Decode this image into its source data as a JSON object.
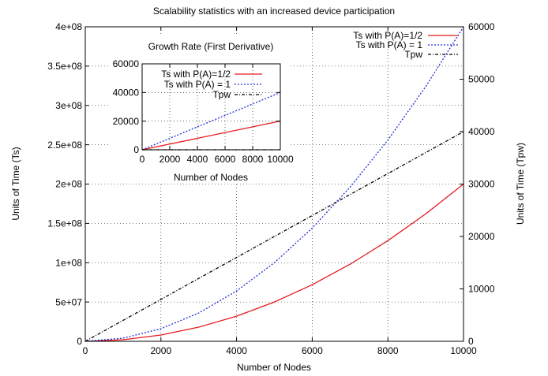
{
  "chart_data": [
    {
      "type": "line",
      "title": "Scalability statistics with an increased device participation",
      "xlabel": "Number of Nodes",
      "ylabel": "Units of Time (Ts)",
      "y2label": "Units of Time (Tpw)",
      "xlim": [
        0,
        10000
      ],
      "ylim": [
        0,
        400000000
      ],
      "y2lim": [
        0,
        60000
      ],
      "xticks": [
        "0",
        "2000",
        "4000",
        "6000",
        "8000",
        "10000"
      ],
      "yticks": [
        "0",
        "5e+07",
        "1e+08",
        "1.5e+08",
        "2e+08",
        "2.5e+08",
        "3e+08",
        "3.5e+08",
        "4e+08"
      ],
      "y2ticks": [
        "0",
        "10000",
        "20000",
        "30000",
        "40000",
        "50000",
        "60000"
      ],
      "grid": true,
      "legend_position": "top-right",
      "series": [
        {
          "name": "Ts with P(A)=1/2",
          "axis": "left",
          "color": "#e41a1c",
          "dash": "solid",
          "x": [
            0,
            1000,
            2000,
            3000,
            4000,
            5000,
            6000,
            7000,
            8000,
            9000,
            10000
          ],
          "y": [
            0,
            2000000,
            8000000,
            18000000,
            32000000,
            50000000,
            72000000,
            98000000,
            128000000,
            162000000,
            200000000
          ]
        },
        {
          "name": "Ts with P(A) = 1",
          "axis": "left",
          "color": "#1f2fd6",
          "dash": "dotted",
          "x": [
            0,
            1000,
            2000,
            3000,
            4000,
            5000,
            6000,
            7000,
            8000,
            9000,
            10000
          ],
          "y": [
            0,
            4000000,
            16000000,
            36000000,
            64000000,
            100000000,
            144000000,
            196000000,
            256000000,
            324000000,
            400000000
          ]
        },
        {
          "name": "Tpw",
          "axis": "right",
          "color": "#000000",
          "dash": "dashdot",
          "x": [
            0,
            10000
          ],
          "y": [
            0,
            40000
          ]
        }
      ]
    },
    {
      "type": "line",
      "title": "Growth Rate (First Derivative)",
      "xlabel": "Number of Nodes",
      "ylabel": "",
      "xlim": [
        0,
        10000
      ],
      "ylim": [
        0,
        60000
      ],
      "xticks": [
        "0",
        "2000",
        "4000",
        "6000",
        "8000",
        "10000"
      ],
      "yticks": [
        "0",
        "20000",
        "40000",
        "60000"
      ],
      "grid": true,
      "legend_position": "top-right",
      "series": [
        {
          "name": "Ts with P(A)=1/2",
          "color": "#e41a1c",
          "dash": "solid",
          "x": [
            0,
            10000
          ],
          "y": [
            0,
            20000
          ]
        },
        {
          "name": "Ts with P(A) = 1",
          "color": "#1f2fd6",
          "dash": "dotted",
          "x": [
            0,
            10000
          ],
          "y": [
            0,
            40000
          ]
        },
        {
          "name": "Tpw",
          "color": "#000000",
          "dash": "dashdot",
          "x": [
            0,
            10000
          ],
          "y": [
            4,
            4
          ]
        }
      ]
    }
  ]
}
